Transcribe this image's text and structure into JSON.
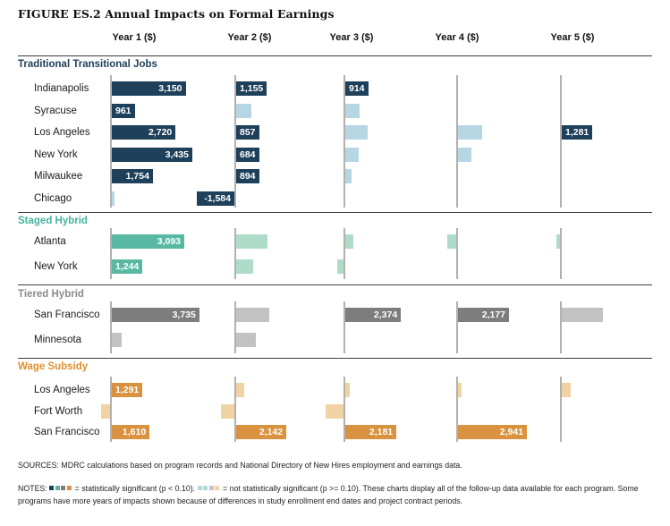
{
  "chart_data": {
    "type": "bar",
    "title": "FIGURE ES.2 Annual Impacts on Formal Earnings",
    "unit": "USD",
    "orientation": "horizontal",
    "columns": [
      "Year 1 ($)",
      "Year 2 ($)",
      "Year 3 ($)",
      "Year 4 ($)",
      "Year 5 ($)"
    ],
    "legend": {
      "significant": "statistically significant (p < 0.10)",
      "not_significant": "not statistically significant (p >= 0.10)"
    },
    "colors": {
      "traditional": {
        "solid": "#1f405a",
        "light": "#b6d6e4",
        "header": "#1f405a"
      },
      "staged": {
        "solid": "#58b8a1",
        "light": "#aedcc8",
        "header": "#45b39c"
      },
      "tiered": {
        "solid": "#7d7d7d",
        "light": "#c2c2c2",
        "header": "#8a8a8a"
      },
      "wage": {
        "solid": "#d9923f",
        "light": "#f1d3a3",
        "header": "#e0902f"
      }
    },
    "sections": [
      {
        "label": "Traditional Transitional Jobs",
        "color_key": "traditional",
        "rows": [
          {
            "label": "Indianapolis",
            "bars": [
              {
                "year": 1,
                "value": 3150,
                "significant": true,
                "label": "3,150"
              },
              {
                "year": 2,
                "value": 1155,
                "significant": true,
                "label": "1,155"
              },
              {
                "year": 3,
                "value": 914,
                "significant": true,
                "label": "914"
              }
            ]
          },
          {
            "label": "Syracuse",
            "bars": [
              {
                "year": 1,
                "value": 961,
                "significant": true,
                "label": "961"
              },
              {
                "year": 2,
                "value": 650,
                "significant": false
              },
              {
                "year": 3,
                "value": 610,
                "significant": false
              }
            ]
          },
          {
            "label": "Los Angeles",
            "bars": [
              {
                "year": 1,
                "value": 2720,
                "significant": true,
                "label": "2,720"
              },
              {
                "year": 2,
                "value": 857,
                "significant": true,
                "label": "857"
              },
              {
                "year": 3,
                "value": 950,
                "significant": false
              },
              {
                "year": 4,
                "value": 1030,
                "significant": false
              },
              {
                "year": 5,
                "value": 1281,
                "significant": true,
                "label": "1,281"
              }
            ]
          },
          {
            "label": "New York",
            "bars": [
              {
                "year": 1,
                "value": 3435,
                "significant": true,
                "label": "3,435"
              },
              {
                "year": 2,
                "value": 684,
                "significant": true,
                "label": "684"
              },
              {
                "year": 3,
                "value": 570,
                "significant": false
              },
              {
                "year": 4,
                "value": 570,
                "significant": false
              }
            ]
          },
          {
            "label": "Milwaukee",
            "bars": [
              {
                "year": 1,
                "value": 1754,
                "significant": true,
                "label": "1,754"
              },
              {
                "year": 2,
                "value": 894,
                "significant": true,
                "label": "894"
              },
              {
                "year": 3,
                "value": 270,
                "significant": false
              }
            ]
          },
          {
            "label": "Chicago",
            "bars": [
              {
                "year": 1,
                "value": 110,
                "significant": false
              },
              {
                "year": 2,
                "value": -1584,
                "significant": true,
                "label": "-1,584"
              }
            ]
          }
        ]
      },
      {
        "label": "Staged Hybrid",
        "color_key": "staged",
        "rows": [
          {
            "label": "Atlanta",
            "bars": [
              {
                "year": 1,
                "value": 3093,
                "significant": true,
                "label": "3,093"
              },
              {
                "year": 2,
                "value": 1340,
                "significant": false
              },
              {
                "year": 3,
                "value": 340,
                "significant": false
              },
              {
                "year": 4,
                "value": -380,
                "significant": false
              },
              {
                "year": 5,
                "value": -150,
                "significant": false
              }
            ]
          },
          {
            "label": "New York",
            "bars": [
              {
                "year": 1,
                "value": 1244,
                "significant": true,
                "label": "1,244"
              },
              {
                "year": 2,
                "value": 730,
                "significant": false
              },
              {
                "year": 3,
                "value": -270,
                "significant": false
              }
            ]
          }
        ]
      },
      {
        "label": "Tiered Hybrid",
        "color_key": "tiered",
        "rows": [
          {
            "label": "San Francisco",
            "bars": [
              {
                "year": 1,
                "value": 3735,
                "significant": true,
                "label": "3,735"
              },
              {
                "year": 2,
                "value": 1410,
                "significant": false
              },
              {
                "year": 3,
                "value": 2374,
                "significant": true,
                "label": "2,374"
              },
              {
                "year": 4,
                "value": 2177,
                "significant": true,
                "label": "2,177"
              },
              {
                "year": 5,
                "value": 1760,
                "significant": false
              }
            ]
          },
          {
            "label": "Minnesota",
            "bars": [
              {
                "year": 1,
                "value": 420,
                "significant": false
              },
              {
                "year": 2,
                "value": 840,
                "significant": false
              }
            ]
          }
        ]
      },
      {
        "label": "Wage Subsidy",
        "color_key": "wage",
        "rows": [
          {
            "label": "Los Angeles",
            "bars": [
              {
                "year": 1,
                "value": 1291,
                "significant": true,
                "label": "1,291"
              },
              {
                "year": 2,
                "value": 340,
                "significant": false
              },
              {
                "year": 3,
                "value": 190,
                "significant": false
              },
              {
                "year": 4,
                "value": 150,
                "significant": false
              },
              {
                "year": 5,
                "value": 380,
                "significant": false
              }
            ]
          },
          {
            "label": "Fort Worth",
            "bars": [
              {
                "year": 1,
                "value": -380,
                "significant": false
              },
              {
                "year": 2,
                "value": -570,
                "significant": false
              },
              {
                "year": 3,
                "value": -760,
                "significant": false
              }
            ]
          },
          {
            "label": "San Francisco",
            "bars": [
              {
                "year": 1,
                "value": 1610,
                "significant": true,
                "label": "1,610"
              },
              {
                "year": 2,
                "value": 2142,
                "significant": true,
                "label": "2,142"
              },
              {
                "year": 3,
                "value": 2181,
                "significant": true,
                "label": "2,181"
              },
              {
                "year": 4,
                "value": 2941,
                "significant": true,
                "label": "2,941"
              }
            ]
          }
        ]
      }
    ]
  },
  "sources": "SOURCES: MDRC calculations based on program records and National Directory of New Hires employment and earnings data.",
  "notes": {
    "prefix": "NOTES:",
    "sig_text": "= statistically significant (p < 0.10).",
    "nonsig_text": "= not statistically significant (p >= 0.10).",
    "tail": "These charts display all of the follow-up data available for each program. Some programs have more years of impacts shown because of differences in study enrollment end dates and project contract periods."
  }
}
